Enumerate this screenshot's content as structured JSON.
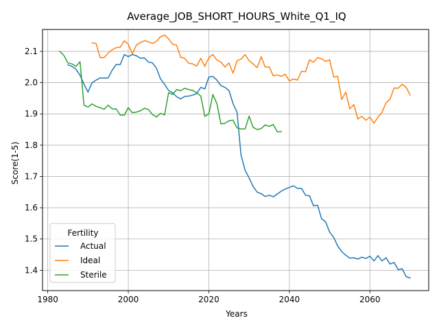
{
  "chart_data": {
    "type": "line",
    "title": "Average_JOB_SHORT_HOURS_White_Q1_IQ",
    "xlabel": "Years",
    "ylabel": "Score(1-5)",
    "xlim": [
      1978.7,
      2074.6
    ],
    "ylim": [
      1.335,
      2.17
    ],
    "xticks": [
      1980,
      2000,
      2020,
      2040,
      2060
    ],
    "yticks": [
      1.4,
      1.5,
      1.6,
      1.7,
      1.8,
      1.9,
      2.0,
      2.1
    ],
    "grid": true,
    "legend": {
      "title": "Fertility",
      "placement": "bottom-left"
    },
    "series": [
      {
        "name": "Actual",
        "color": "#1f77b4",
        "x": [
          1985,
          1986,
          1987,
          1988,
          1989,
          1990,
          1991,
          1992,
          1993,
          1994,
          1995,
          1996,
          1997,
          1998,
          1999,
          2000,
          2001,
          2002,
          2003,
          2004,
          2005,
          2006,
          2007,
          2008,
          2009,
          2010,
          2011,
          2012,
          2013,
          2014,
          2015,
          2016,
          2017,
          2018,
          2019,
          2020,
          2021,
          2022,
          2023,
          2024,
          2025,
          2026,
          2027,
          2028,
          2029,
          2030,
          2031,
          2032,
          2033,
          2034,
          2035,
          2036,
          2037,
          2038,
          2039,
          2040,
          2041,
          2042,
          2043,
          2044,
          2045,
          2046,
          2047,
          2048,
          2049,
          2050,
          2051,
          2052,
          2053,
          2054,
          2055,
          2056,
          2057,
          2058,
          2059,
          2060,
          2061,
          2062,
          2063,
          2064,
          2065,
          2066,
          2067,
          2068,
          2069,
          2070
        ],
        "y": [
          2.057,
          2.052,
          2.043,
          2.024,
          1.995,
          1.97,
          2.0,
          2.008,
          2.015,
          2.015,
          2.015,
          2.04,
          2.058,
          2.058,
          2.09,
          2.083,
          2.09,
          2.086,
          2.078,
          2.079,
          2.066,
          2.063,
          2.046,
          2.012,
          1.995,
          1.975,
          1.968,
          1.955,
          1.948,
          1.956,
          1.957,
          1.96,
          1.965,
          1.985,
          1.98,
          2.018,
          2.02,
          2.008,
          1.99,
          1.985,
          1.975,
          1.933,
          1.905,
          1.768,
          1.72,
          1.695,
          1.668,
          1.65,
          1.645,
          1.636,
          1.64,
          1.635,
          1.644,
          1.653,
          1.66,
          1.665,
          1.67,
          1.662,
          1.662,
          1.64,
          1.638,
          1.606,
          1.608,
          1.565,
          1.555,
          1.522,
          1.505,
          1.478,
          1.46,
          1.448,
          1.439,
          1.44,
          1.436,
          1.442,
          1.438,
          1.445,
          1.43,
          1.447,
          1.43,
          1.44,
          1.42,
          1.425,
          1.402,
          1.405,
          1.38,
          1.375
        ]
      },
      {
        "name": "Ideal",
        "color": "#ff7f0e",
        "x": [
          1991,
          1992,
          1993,
          1994,
          1995,
          1996,
          1997,
          1998,
          1999,
          2000,
          2001,
          2002,
          2003,
          2004,
          2005,
          2006,
          2007,
          2008,
          2009,
          2010,
          2011,
          2012,
          2013,
          2014,
          2015,
          2016,
          2017,
          2018,
          2019,
          2020,
          2021,
          2022,
          2023,
          2024,
          2025,
          2026,
          2027,
          2028,
          2029,
          2030,
          2031,
          2032,
          2033,
          2034,
          2035,
          2036,
          2037,
          2038,
          2039,
          2040,
          2041,
          2042,
          2043,
          2044,
          2045,
          2046,
          2047,
          2048,
          2049,
          2050,
          2051,
          2052,
          2053,
          2054,
          2055,
          2056,
          2057,
          2058,
          2059,
          2060,
          2061,
          2062,
          2063,
          2064,
          2065,
          2066,
          2067,
          2068,
          2069,
          2070
        ],
        "y": [
          2.127,
          2.125,
          2.08,
          2.08,
          2.095,
          2.105,
          2.112,
          2.113,
          2.134,
          2.123,
          2.092,
          2.12,
          2.128,
          2.134,
          2.131,
          2.125,
          2.132,
          2.147,
          2.152,
          2.14,
          2.123,
          2.12,
          2.081,
          2.078,
          2.062,
          2.06,
          2.053,
          2.078,
          2.052,
          2.08,
          2.09,
          2.072,
          2.066,
          2.05,
          2.063,
          2.03,
          2.07,
          2.075,
          2.09,
          2.07,
          2.06,
          2.048,
          2.083,
          2.05,
          2.05,
          2.022,
          2.025,
          2.02,
          2.027,
          2.005,
          2.012,
          2.008,
          2.036,
          2.035,
          2.073,
          2.065,
          2.08,
          2.076,
          2.068,
          2.073,
          2.018,
          2.02,
          1.946,
          1.97,
          1.916,
          1.93,
          1.884,
          1.892,
          1.88,
          1.89,
          1.87,
          1.89,
          1.905,
          1.936,
          1.947,
          1.983,
          1.982,
          1.995,
          1.985,
          1.96
        ]
      },
      {
        "name": "Sterile",
        "color": "#2ca02c",
        "x": [
          1983,
          1984,
          1985,
          1986,
          1987,
          1988,
          1989,
          1990,
          1991,
          1992,
          1993,
          1994,
          1995,
          1996,
          1997,
          1998,
          1999,
          2000,
          2001,
          2002,
          2003,
          2004,
          2005,
          2006,
          2007,
          2008,
          2009,
          2010,
          2011,
          2012,
          2013,
          2014,
          2015,
          2016,
          2017,
          2018,
          2019,
          2020,
          2021,
          2022,
          2023,
          2024,
          2025,
          2026,
          2027,
          2028,
          2029,
          2030,
          2031,
          2032,
          2033,
          2034,
          2035,
          2036,
          2037,
          2038
        ],
        "y": [
          2.1,
          2.087,
          2.063,
          2.06,
          2.052,
          2.067,
          1.928,
          1.922,
          1.932,
          1.924,
          1.92,
          1.915,
          1.928,
          1.916,
          1.916,
          1.896,
          1.896,
          1.92,
          1.904,
          1.906,
          1.91,
          1.918,
          1.914,
          1.898,
          1.89,
          1.902,
          1.897,
          1.968,
          1.962,
          1.978,
          1.974,
          1.982,
          1.978,
          1.975,
          1.968,
          1.957,
          1.892,
          1.9,
          1.962,
          1.933,
          1.868,
          1.87,
          1.878,
          1.88,
          1.855,
          1.852,
          1.852,
          1.893,
          1.857,
          1.85,
          1.853,
          1.865,
          1.86,
          1.866,
          1.843,
          1.843
        ]
      }
    ]
  }
}
